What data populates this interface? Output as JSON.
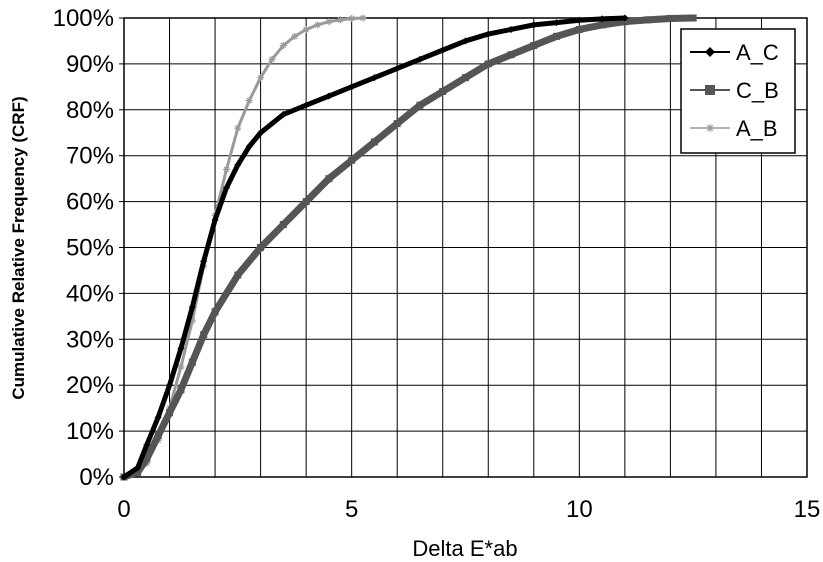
{
  "chart_data": {
    "type": "line",
    "title": "",
    "xlabel": "Delta E*ab",
    "ylabel": "Cumulative Relative Frequency (CRF)",
    "xlim": [
      0,
      15
    ],
    "ylim": [
      0,
      100
    ],
    "x_ticks": [
      0,
      5,
      10,
      15
    ],
    "x_tick_labels": [
      "0",
      "5",
      "10",
      "15"
    ],
    "x_grid_step": 1,
    "y_ticks": [
      0,
      10,
      20,
      30,
      40,
      50,
      60,
      70,
      80,
      90,
      100
    ],
    "y_tick_labels": [
      "0%",
      "10%",
      "20%",
      "30%",
      "40%",
      "50%",
      "60%",
      "70%",
      "80%",
      "90%",
      "100%"
    ],
    "grid": true,
    "legend_position": "top-right",
    "series": [
      {
        "name": "A_C",
        "color": "#000000",
        "marker": "diamond",
        "x": [
          0,
          0.3,
          0.5,
          0.75,
          1.0,
          1.25,
          1.5,
          1.75,
          2.0,
          2.25,
          2.5,
          2.75,
          3.0,
          3.5,
          4.0,
          4.5,
          5.0,
          5.5,
          6.0,
          6.5,
          7.0,
          7.5,
          8.0,
          8.5,
          9.0,
          9.5,
          10.0,
          10.5,
          11.0
        ],
        "y": [
          0,
          2,
          7,
          13,
          20,
          28,
          37,
          47,
          56,
          63,
          68,
          72,
          75,
          79,
          81,
          83,
          85,
          87,
          89,
          91,
          93,
          95,
          96.5,
          97.5,
          98.5,
          99,
          99.5,
          99.8,
          100
        ]
      },
      {
        "name": "C_B",
        "color": "#555555",
        "marker": "square",
        "x": [
          0,
          0.3,
          0.5,
          0.75,
          1.0,
          1.25,
          1.5,
          1.75,
          2.0,
          2.5,
          3.0,
          3.5,
          4.0,
          4.5,
          5.0,
          5.5,
          6.0,
          6.5,
          7.0,
          7.5,
          8.0,
          8.5,
          9.0,
          9.5,
          10.0,
          10.5,
          11.0,
          11.5,
          12.0,
          12.5
        ],
        "y": [
          0,
          1,
          4,
          9,
          14,
          19,
          25,
          31,
          36,
          44,
          50,
          55,
          60,
          65,
          69,
          73,
          77,
          81,
          84,
          87,
          90,
          92,
          94,
          96,
          97.5,
          98.5,
          99.2,
          99.6,
          99.9,
          100
        ]
      },
      {
        "name": "A_B",
        "color": "#9a9a9a",
        "marker": "star",
        "x": [
          0,
          0.3,
          0.5,
          0.75,
          1.0,
          1.25,
          1.5,
          1.75,
          2.0,
          2.25,
          2.5,
          2.75,
          3.0,
          3.25,
          3.5,
          3.75,
          4.0,
          4.25,
          4.5,
          4.75,
          5.0,
          5.25
        ],
        "y": [
          0,
          1,
          3,
          8,
          15,
          24,
          34,
          46,
          57,
          67,
          76,
          82,
          87,
          91,
          94,
          96,
          97.5,
          98.5,
          99.2,
          99.6,
          99.9,
          100
        ]
      }
    ]
  }
}
